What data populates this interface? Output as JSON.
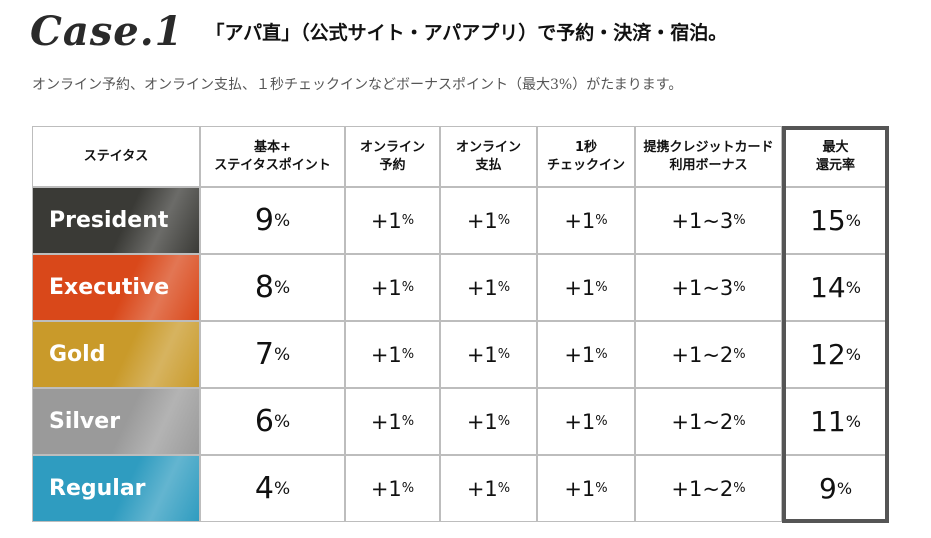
{
  "title": {
    "case_label": "Case.1",
    "text": "「アパ直」（公式サイト・アパアプリ）で予約・決済・宿泊。"
  },
  "subtitle": "オンライン予約、オンライン支払、１秒チェックインなどボーナスポイント（最大3%）がたまります。",
  "table": {
    "headers": [
      "ステイタス",
      "基本+\nステイタスポイント",
      "オンライン\n予約",
      "オンライン\n支払",
      "1秒\nチェックイン",
      "提携クレジットカード\n利用ボーナス",
      "最大\n還元率"
    ],
    "pct": "%",
    "rows": [
      {
        "tier": "President",
        "color": "#3a3a36",
        "base": "9",
        "online_booking": "+1",
        "online_payment": "+1",
        "checkin": "+1",
        "card_bonus": "+1~3",
        "max_rate": "15"
      },
      {
        "tier": "Executive",
        "color": "#d9481a",
        "base": "8",
        "online_booking": "+1",
        "online_payment": "+1",
        "checkin": "+1",
        "card_bonus": "+1~3",
        "max_rate": "14"
      },
      {
        "tier": "Gold",
        "color": "#c99a2a",
        "base": "7",
        "online_booking": "+1",
        "online_payment": "+1",
        "checkin": "+1",
        "card_bonus": "+1~2",
        "max_rate": "12"
      },
      {
        "tier": "Silver",
        "color": "#9a9a9a",
        "base": "6",
        "online_booking": "+1",
        "online_payment": "+1",
        "checkin": "+1",
        "card_bonus": "+1~2",
        "max_rate": "11"
      },
      {
        "tier": "Regular",
        "color": "#2f9cc0",
        "base": "4",
        "online_booking": "+1",
        "online_payment": "+1",
        "checkin": "+1",
        "card_bonus": "+1~2",
        "max_rate": "9"
      }
    ]
  }
}
